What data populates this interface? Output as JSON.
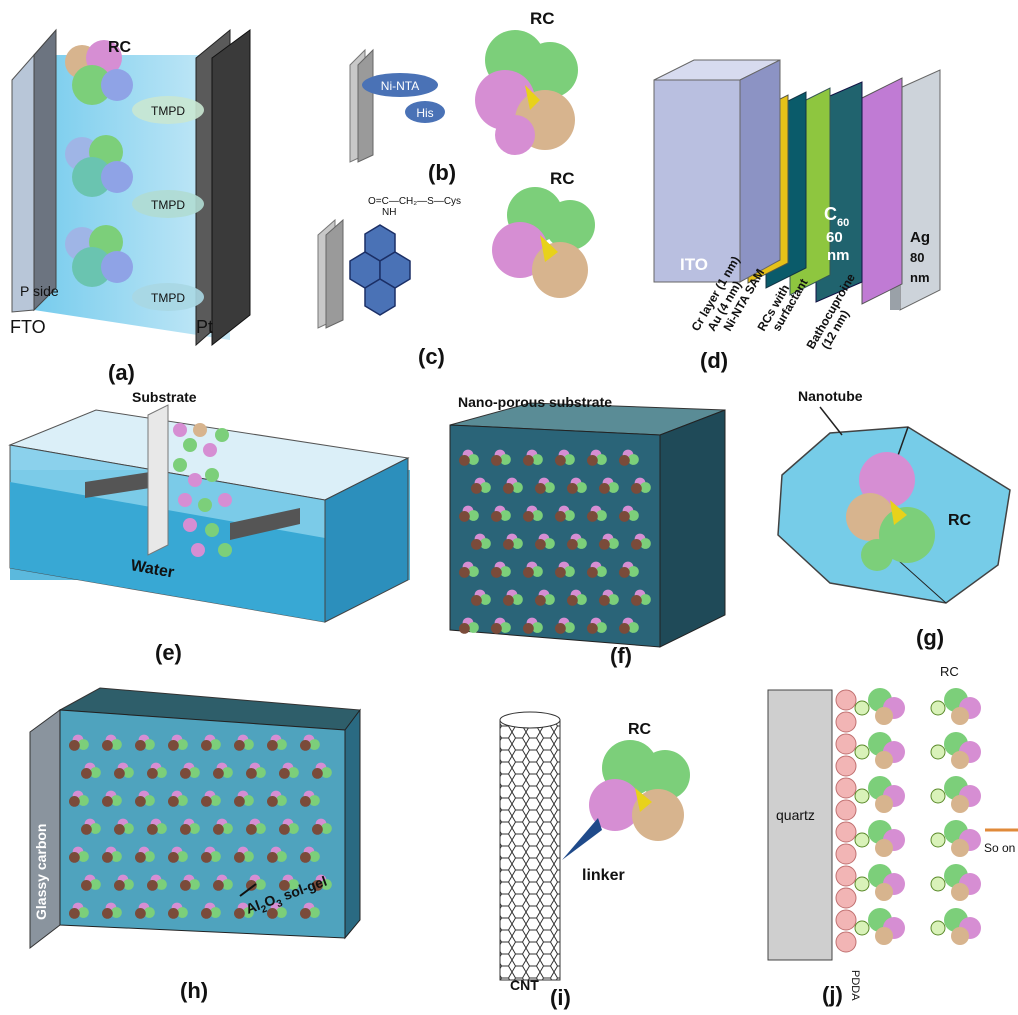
{
  "panels": {
    "a": {
      "label": "(a)",
      "rc": "RC",
      "tmpd": [
        "TMPD",
        "TMPD",
        "TMPD"
      ],
      "p_side": "P side",
      "fto": "FTO",
      "pt": "Pt"
    },
    "b": {
      "label": "(b)",
      "rc": "RC",
      "ni_nta": "Ni-NTA",
      "his": "His"
    },
    "c": {
      "label": "(c)",
      "rc": "RC",
      "formula": "O=C—CH₂—S—Cys",
      "nh": "NH"
    },
    "d": {
      "label": "(d)",
      "ito": "ITO",
      "c60": "C",
      "c60_sub": "60",
      "c60_thick": "60",
      "c60_unit": "nm",
      "ag": "Ag",
      "ag_thick": "80",
      "ag_unit": "nm",
      "layers": [
        "Cr layer (1 nm)",
        "Au (4 nm)",
        "Ni-NTA SAM",
        "RCs with",
        "surfactant",
        "Bathocuproine",
        "(12 nm)"
      ]
    },
    "e": {
      "label": "(e)",
      "substrate": "Substrate",
      "water": "Water"
    },
    "f": {
      "label": "(f)",
      "title": "Nano-porous substrate"
    },
    "g": {
      "label": "(g)",
      "nanotube": "Nanotube",
      "rc": "RC"
    },
    "h": {
      "label": "(h)",
      "glassy": "Glassy carbon",
      "sol_gel": "Al",
      "sol_gel_sub": "2",
      "sol_gel_mid": "O",
      "sol_gel_sub2": "3",
      "sol_gel_end": " sol-gel"
    },
    "i": {
      "label": "(i)",
      "rc": "RC",
      "linker": "linker",
      "cnt": "CNT"
    },
    "j": {
      "label": "(j)",
      "rc": "RC",
      "quartz": "quartz",
      "so_on": "So on",
      "pdda": "PDDA"
    }
  },
  "colors": {
    "rc_green": "#7ccf7a",
    "rc_pink": "#d68ed3",
    "rc_tan": "#d7b48e",
    "water": "#4bb5d8",
    "nano": "#2a6478",
    "layer_blue": "#1f5fae"
  }
}
